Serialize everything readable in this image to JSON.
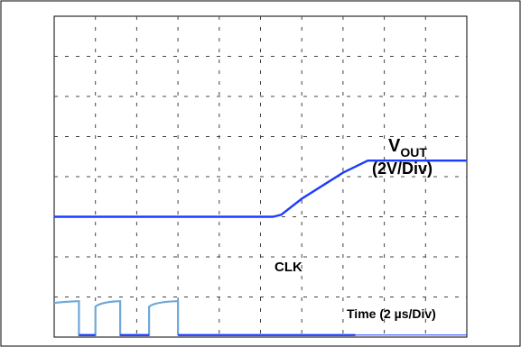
{
  "chart_data": {
    "type": "line",
    "title": "",
    "xlabel": "Time (2 µs/Div)",
    "ylabel": "",
    "grid": true,
    "x_divisions": 10,
    "y_divisions": 8,
    "series": [
      {
        "name": "VOUT",
        "label_main": "V",
        "label_sub": "OUT",
        "scale_label": "(2V/Div)",
        "color": "#1a3cff",
        "x_div": [
          0,
          5.3,
          5.5,
          6.0,
          7.0,
          7.6,
          10.0
        ],
        "y_div": [
          3.0,
          3.0,
          3.05,
          3.45,
          4.1,
          4.4,
          4.4
        ]
      },
      {
        "name": "CLK",
        "color_high": "#6fa8d8",
        "color_low": "#1a3cff",
        "high_div": 0.85,
        "low_div": 0.05,
        "pulses_div": [
          [
            0.0,
            0.6
          ],
          [
            1.0,
            1.6
          ],
          [
            2.3,
            3.0
          ]
        ],
        "end_div": 7.3
      }
    ]
  },
  "colors": {
    "trace": "#1a3cff",
    "clk_high": "#6fa8d8",
    "grid": "#444444",
    "border": "#000000"
  }
}
